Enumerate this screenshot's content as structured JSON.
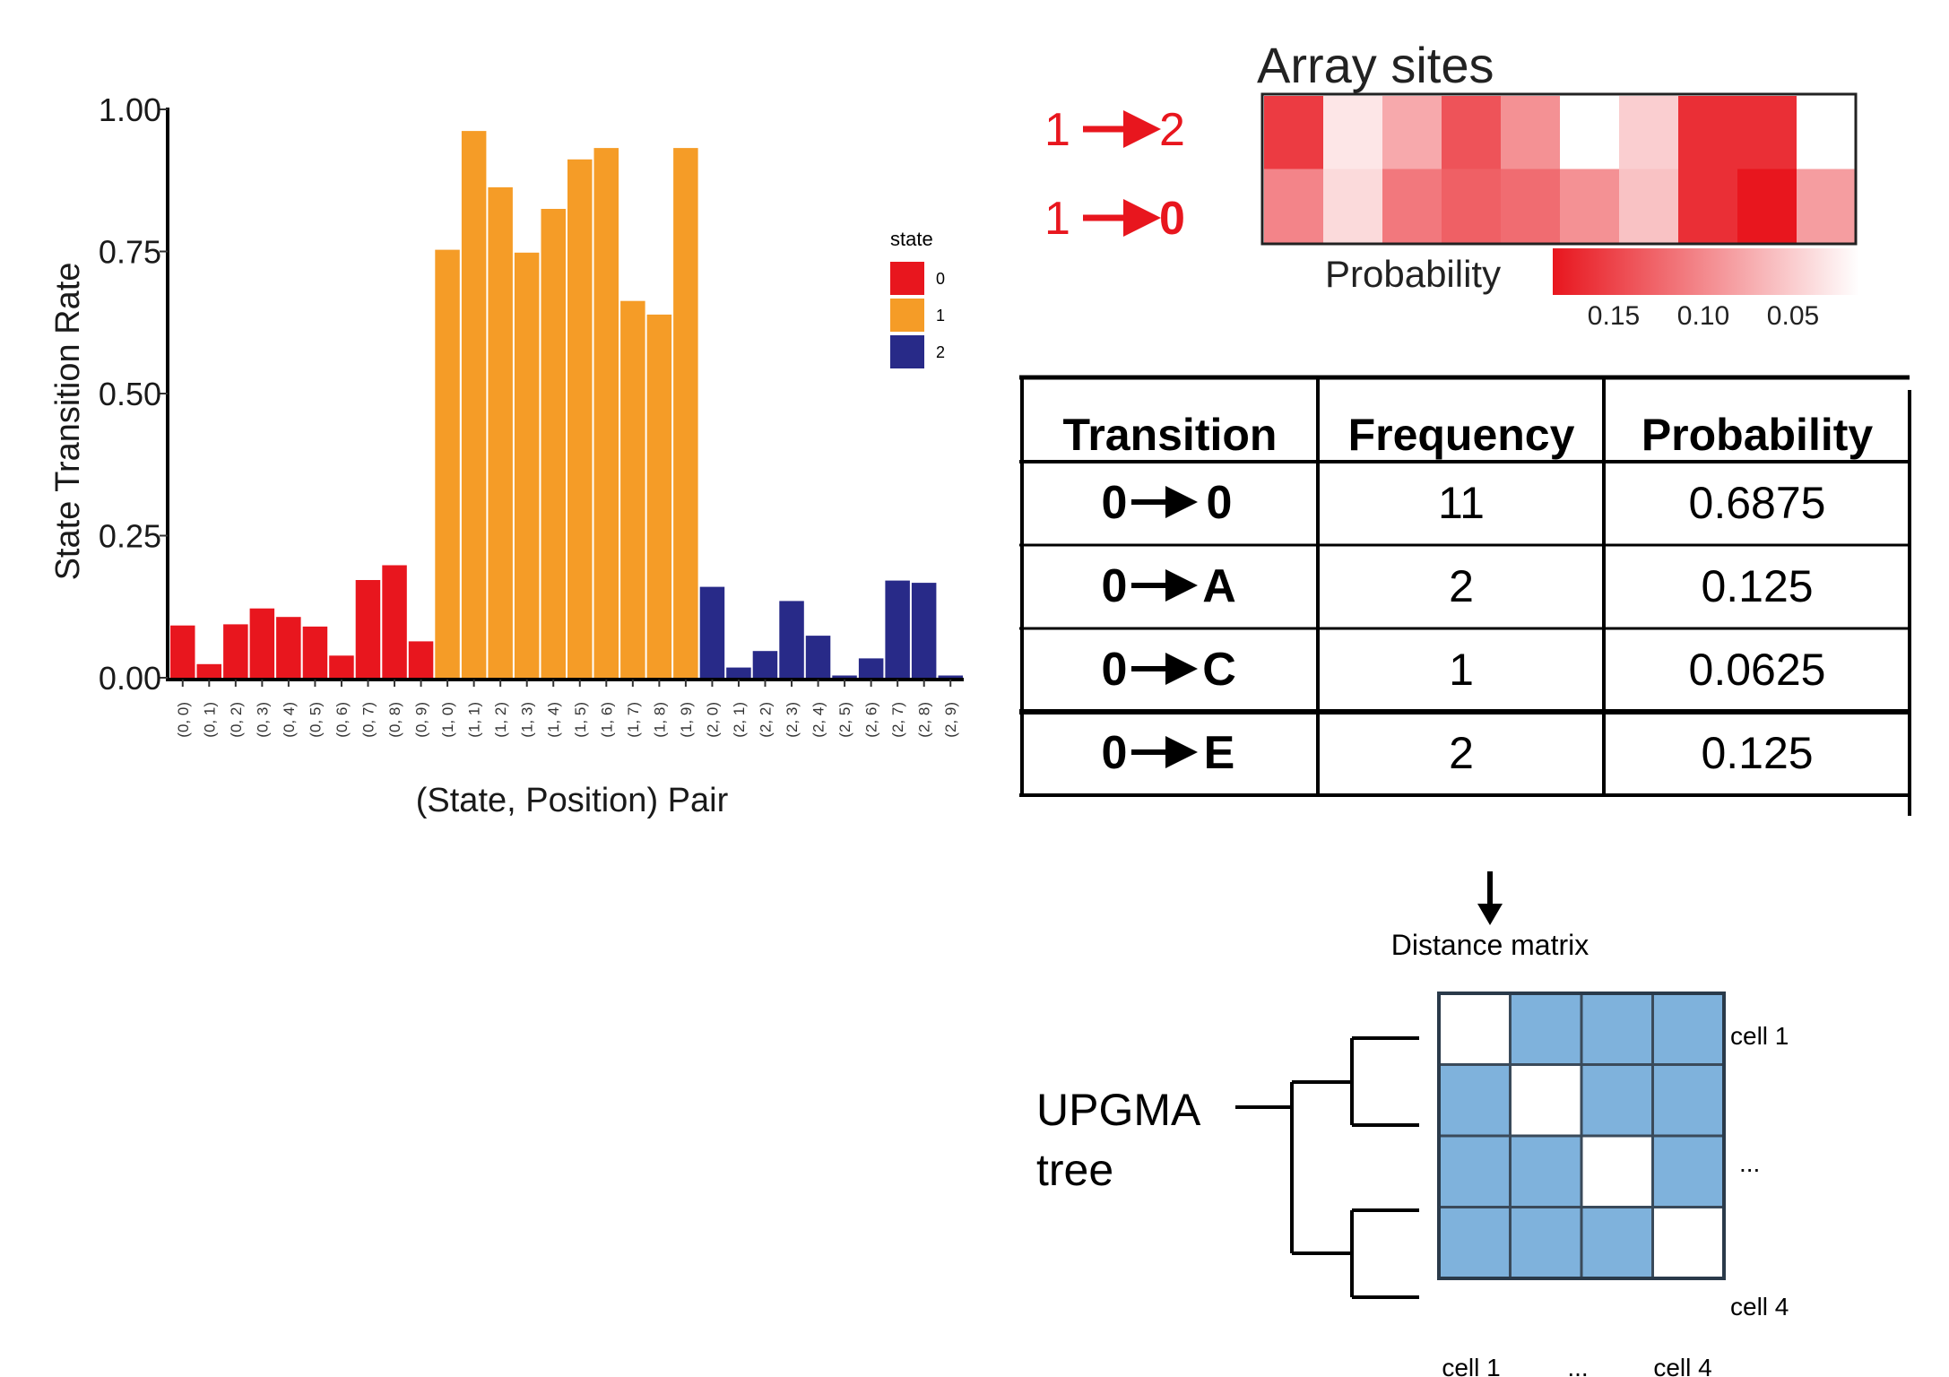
{
  "chart_data": {
    "type": "bar",
    "ylabel": "State Transition Rate",
    "xlabel": "(State, Position) Pair",
    "ylim": [
      0,
      1
    ],
    "yticks": [
      "0.00",
      "0.25",
      "0.50",
      "0.75",
      "1.00"
    ],
    "grid": false,
    "legend": {
      "title": "state",
      "placement": "right",
      "items": [
        {
          "label": "0",
          "color": "#e8161e"
        },
        {
          "label": "1",
          "color": "#f59c27"
        },
        {
          "label": "2",
          "color": "#282a88"
        }
      ]
    },
    "categories": [
      "(0, 0)",
      "(0, 1)",
      "(0, 2)",
      "(0, 3)",
      "(0, 4)",
      "(0, 5)",
      "(0, 6)",
      "(0, 7)",
      "(0, 8)",
      "(0, 9)",
      "(1, 0)",
      "(1, 1)",
      "(1, 2)",
      "(1, 3)",
      "(1, 4)",
      "(1, 5)",
      "(1, 6)",
      "(1, 7)",
      "(1, 8)",
      "(1, 9)",
      "(2, 0)",
      "(2, 1)",
      "(2, 2)",
      "(2, 3)",
      "(2, 4)",
      "(2, 5)",
      "(2, 6)",
      "(2, 7)",
      "(2, 8)",
      "(2, 9)"
    ],
    "states": [
      0,
      0,
      0,
      0,
      0,
      0,
      0,
      0,
      0,
      0,
      1,
      1,
      1,
      1,
      1,
      1,
      1,
      1,
      1,
      1,
      2,
      2,
      2,
      2,
      2,
      2,
      2,
      2,
      2,
      2
    ],
    "values": [
      0.092,
      0.024,
      0.094,
      0.122,
      0.107,
      0.09,
      0.039,
      0.172,
      0.198,
      0.064,
      0.753,
      0.962,
      0.863,
      0.748,
      0.825,
      0.912,
      0.932,
      0.663,
      0.639,
      0.932,
      0.16,
      0.018,
      0.047,
      0.135,
      0.074,
      0.004,
      0.034,
      0.171,
      0.167,
      0.004
    ]
  },
  "heatmap": {
    "title": "Array sites",
    "rows": [
      {
        "from": "1",
        "to": "2",
        "values": [
          0.16,
          0.02,
          0.07,
          0.14,
          0.09,
          0.0,
          0.04,
          0.17,
          0.17,
          0.0
        ]
      },
      {
        "from": "1",
        "to": "0",
        "values": [
          0.1,
          0.03,
          0.11,
          0.13,
          0.12,
          0.09,
          0.05,
          0.17,
          0.19,
          0.08
        ]
      }
    ],
    "colorbar_label": "Probability",
    "colorbar_ticks": [
      "0.15",
      "0.10",
      "0.05"
    ],
    "color_high": "#e8161e"
  },
  "table": {
    "headers": [
      "Transition",
      "Frequency",
      "Probability"
    ],
    "rows": [
      {
        "from": "0",
        "to": "0",
        "frequency": "11",
        "probability": "0.6875"
      },
      {
        "from": "0",
        "to": "A",
        "frequency": "2",
        "probability": "0.125"
      },
      {
        "from": "0",
        "to": "C",
        "frequency": "1",
        "probability": "0.0625"
      },
      {
        "from": "0",
        "to": "E",
        "frequency": "2",
        "probability": "0.125"
      }
    ]
  },
  "distance_matrix": {
    "caption": "Distance matrix",
    "fill_color": "#7fb2dc",
    "row_labels": [
      "cell 1",
      "...",
      "cell 4"
    ],
    "col_labels": [
      "cell 1",
      "...",
      "cell 4"
    ]
  },
  "tree": {
    "label_line1": "UPGMA",
    "label_line2": "tree"
  }
}
